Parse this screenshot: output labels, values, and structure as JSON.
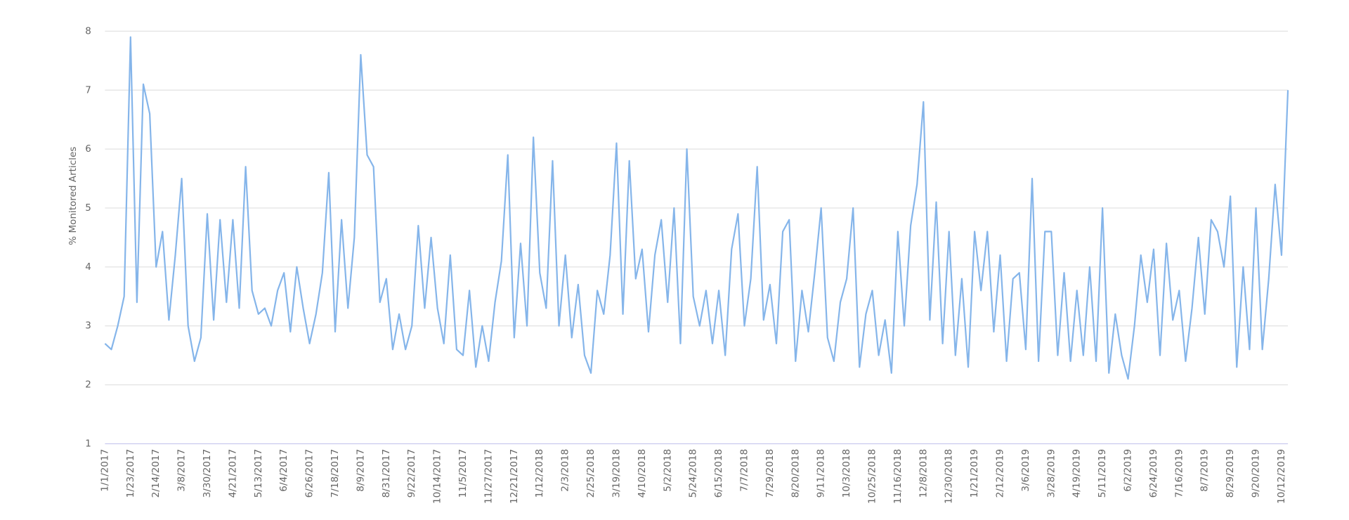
{
  "chart_data": {
    "type": "line",
    "ylabel": "% Monitored Articles",
    "color": "#85b5ea",
    "grid": true,
    "ylim": [
      1,
      8
    ],
    "yticks": [
      1,
      2,
      3,
      4,
      5,
      6,
      7,
      8
    ],
    "categories": [
      "1/1/2017",
      null,
      null,
      null,
      "1/23/2017",
      null,
      null,
      null,
      "2/14/2017",
      null,
      null,
      null,
      "3/8/2017",
      null,
      null,
      null,
      "3/30/2017",
      null,
      null,
      null,
      "4/21/2017",
      null,
      null,
      null,
      "5/13/2017",
      null,
      null,
      null,
      "6/4/2017",
      null,
      null,
      null,
      "6/26/2017",
      null,
      null,
      null,
      "7/18/2017",
      null,
      null,
      null,
      "8/9/2017",
      null,
      null,
      null,
      "8/31/2017",
      null,
      null,
      null,
      "9/22/2017",
      null,
      null,
      null,
      "10/14/2017",
      null,
      null,
      null,
      "11/5/2017",
      null,
      null,
      null,
      "11/27/2017",
      null,
      null,
      null,
      "12/21/2017",
      null,
      null,
      null,
      "1/12/2018",
      null,
      null,
      null,
      "2/3/2018",
      null,
      null,
      null,
      "2/25/2018",
      null,
      null,
      null,
      "3/19/2018",
      null,
      null,
      null,
      "4/10/2018",
      null,
      null,
      null,
      "5/2/2018",
      null,
      null,
      null,
      "5/24/2018",
      null,
      null,
      null,
      "6/15/2018",
      null,
      null,
      null,
      "7/7/2018",
      null,
      null,
      null,
      "7/29/2018",
      null,
      null,
      null,
      "8/20/2018",
      null,
      null,
      null,
      "9/11/2018",
      null,
      null,
      null,
      "10/3/2018",
      null,
      null,
      null,
      "10/25/2018",
      null,
      null,
      null,
      "11/16/2018",
      null,
      null,
      null,
      "12/8/2018",
      null,
      null,
      null,
      "12/30/2018",
      null,
      null,
      null,
      "1/21/2019",
      null,
      null,
      null,
      "2/12/2019",
      null,
      null,
      null,
      "3/6/2019",
      null,
      null,
      null,
      "3/28/2019",
      null,
      null,
      null,
      "4/19/2019",
      null,
      null,
      null,
      "5/11/2019",
      null,
      null,
      null,
      "6/2/2019",
      null,
      null,
      null,
      "6/24/2019",
      null,
      null,
      null,
      "7/16/2019",
      null,
      null,
      null,
      "8/7/2019",
      null,
      null,
      null,
      "8/29/2019",
      null,
      null,
      null,
      "9/20/2019",
      null,
      null,
      null,
      "10/12/2019",
      null
    ],
    "values": [
      2.7,
      2.6,
      3.0,
      3.5,
      7.9,
      3.4,
      7.1,
      6.6,
      4.0,
      4.6,
      3.1,
      4.2,
      5.5,
      3.0,
      2.4,
      2.8,
      4.9,
      3.1,
      4.8,
      3.4,
      4.8,
      3.3,
      5.7,
      3.6,
      3.2,
      3.3,
      3.0,
      3.6,
      3.9,
      2.9,
      4.0,
      3.3,
      2.7,
      3.2,
      3.9,
      5.6,
      2.9,
      4.8,
      3.3,
      4.5,
      7.6,
      5.9,
      5.7,
      3.4,
      3.8,
      2.6,
      3.2,
      2.6,
      3.0,
      4.7,
      3.3,
      4.5,
      3.3,
      2.7,
      4.2,
      2.6,
      2.5,
      3.6,
      2.3,
      3.0,
      2.4,
      3.4,
      4.1,
      5.9,
      2.8,
      4.4,
      3.0,
      6.2,
      3.9,
      3.3,
      5.8,
      3.0,
      4.2,
      2.8,
      3.7,
      2.5,
      2.2,
      3.6,
      3.2,
      4.2,
      6.1,
      3.2,
      5.8,
      3.8,
      4.3,
      2.9,
      4.2,
      4.8,
      3.4,
      5.0,
      2.7,
      6.0,
      3.5,
      3.0,
      3.6,
      2.7,
      3.6,
      2.5,
      4.3,
      4.9,
      3.0,
      3.8,
      5.7,
      3.1,
      3.7,
      2.7,
      4.6,
      4.8,
      2.4,
      3.6,
      2.9,
      3.9,
      5.0,
      2.8,
      2.4,
      3.4,
      3.8,
      5.0,
      2.3,
      3.2,
      3.6,
      2.5,
      3.1,
      2.2,
      4.6,
      3.0,
      4.7,
      5.4,
      6.8,
      3.1,
      5.1,
      2.7,
      4.6,
      2.5,
      3.8,
      2.3,
      4.6,
      3.6,
      4.6,
      2.9,
      4.2,
      2.4,
      3.8,
      3.9,
      2.6,
      5.5,
      2.4,
      4.6,
      4.6,
      2.5,
      3.9,
      2.4,
      3.6,
      2.5,
      4.0,
      2.4,
      5.0,
      2.2,
      3.2,
      2.5,
      2.1,
      3.0,
      4.2,
      3.4,
      4.3,
      2.5,
      4.4,
      3.1,
      3.6,
      2.4,
      3.3,
      4.5,
      3.2,
      4.8,
      4.6,
      4.0,
      5.2,
      2.3,
      4.0,
      2.6,
      5.0,
      2.6,
      3.8,
      5.4,
      4.2,
      7.0
    ]
  }
}
